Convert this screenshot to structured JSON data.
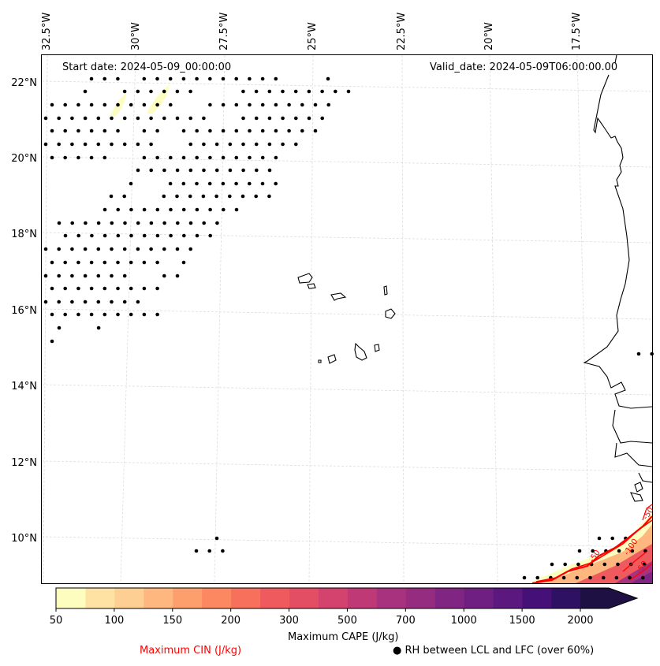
{
  "header": {
    "start_date": "Start date: 2024-05-09_00:00:00",
    "valid_date": "Valid_date: 2024-05-09T06:00:00.00"
  },
  "map": {
    "lon_ticks": [
      "32.5°W",
      "30°W",
      "27.5°W",
      "25°W",
      "22.5°W",
      "20°W",
      "17.5°W"
    ],
    "lat_ticks": [
      "22°N",
      "20°N",
      "18°N",
      "16°N",
      "14°N",
      "12°N",
      "10°N"
    ],
    "gridlines": true,
    "rh_marker_symbol": "●",
    "cin_contour_labels": [
      "-50",
      "-100",
      "-50",
      "-50"
    ],
    "cin_contour_color": "#ff0000"
  },
  "colorbar": {
    "title": "Maximum CAPE (J/kg)",
    "tick_labels": [
      "50",
      "100",
      "150",
      "200",
      "300",
      "500",
      "700",
      "1000",
      "1500",
      "2000"
    ],
    "levels": [
      50,
      75,
      100,
      125,
      150,
      175,
      200,
      250,
      300,
      400,
      500,
      600,
      700,
      800,
      1000,
      1250,
      1500,
      1750,
      2000
    ],
    "colors": [
      "#fcfdbf",
      "#fde2a3",
      "#fecf92",
      "#feb77e",
      "#fd9f6c",
      "#fb8861",
      "#f6705c",
      "#ef5a5f",
      "#e34e65",
      "#d3436e",
      "#bf3977",
      "#a8327d",
      "#962c80",
      "#802582",
      "#6e1f81",
      "#5b187f",
      "#451078",
      "#2f1163",
      "#1e1043"
    ],
    "extend": "max"
  },
  "legend": {
    "cin_label": "Maximum CIN (J/kg)",
    "cin_color": "#ff0000",
    "rh_label": "● RH between LCL and LFC (over 60%)"
  }
}
